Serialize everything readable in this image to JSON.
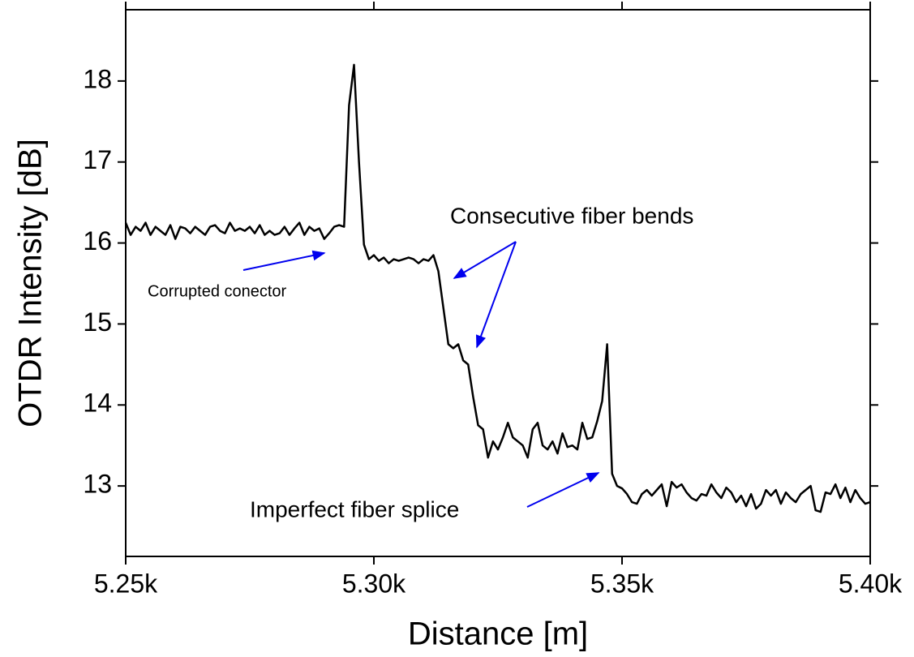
{
  "chart_data": {
    "type": "line",
    "x_label": "Distance [m]",
    "y_label": "OTDR Intensity [dB]",
    "xlim": [
      5250,
      5400
    ],
    "xticks": [
      {
        "value": 5250,
        "label": "5.25k"
      },
      {
        "value": 5300,
        "label": "5.30k"
      },
      {
        "value": 5350,
        "label": "5.35k"
      },
      {
        "value": 5400,
        "label": "5.40k"
      }
    ],
    "ylim": [
      12.13,
      18.88
    ],
    "yticks": [
      13,
      14,
      15,
      16,
      17,
      18
    ],
    "annotations": [
      "Corrupted conector",
      "Consecutive fiber bends",
      "Imperfect fiber splice"
    ],
    "x": [
      5250,
      5251,
      5252,
      5253,
      5254,
      5255,
      5256,
      5257,
      5258,
      5259,
      5260,
      5261,
      5262,
      5263,
      5264,
      5265,
      5266,
      5267,
      5268,
      5269,
      5270,
      5271,
      5272,
      5273,
      5274,
      5275,
      5276,
      5277,
      5278,
      5279,
      5280,
      5281,
      5282,
      5283,
      5284,
      5285,
      5286,
      5287,
      5288,
      5289,
      5290,
      5291,
      5292,
      5293,
      5294,
      5295,
      5296,
      5297,
      5298,
      5299,
      5300,
      5301,
      5302,
      5303,
      5304,
      5305,
      5306,
      5307,
      5308,
      5309,
      5310,
      5311,
      5312,
      5313,
      5314,
      5315,
      5316,
      5317,
      5318,
      5319,
      5320,
      5321,
      5322,
      5323,
      5324,
      5325,
      5326,
      5327,
      5328,
      5329,
      5330,
      5331,
      5332,
      5333,
      5334,
      5335,
      5336,
      5337,
      5338,
      5339,
      5340,
      5341,
      5342,
      5343,
      5344,
      5345,
      5346,
      5347,
      5348,
      5349,
      5350,
      5351,
      5352,
      5353,
      5354,
      5355,
      5356,
      5357,
      5358,
      5359,
      5360,
      5361,
      5362,
      5363,
      5364,
      5365,
      5366,
      5367,
      5368,
      5369,
      5370,
      5371,
      5372,
      5373,
      5374,
      5375,
      5376,
      5377,
      5378,
      5379,
      5380,
      5381,
      5382,
      5383,
      5384,
      5385,
      5386,
      5387,
      5388,
      5389,
      5390,
      5391,
      5392,
      5393,
      5394,
      5395,
      5396,
      5397,
      5398,
      5399,
      5400
    ],
    "series": [
      {
        "color": "#000000",
        "values": [
          16.25,
          16.1,
          16.2,
          16.15,
          16.25,
          16.1,
          16.2,
          16.15,
          16.1,
          16.22,
          16.05,
          16.2,
          16.18,
          16.12,
          16.2,
          16.15,
          16.1,
          16.2,
          16.22,
          16.15,
          16.12,
          16.25,
          16.15,
          16.18,
          16.15,
          16.2,
          16.12,
          16.22,
          16.1,
          16.15,
          16.1,
          16.12,
          16.2,
          16.1,
          16.18,
          16.25,
          16.1,
          16.2,
          16.15,
          16.18,
          16.05,
          16.12,
          16.2,
          16.22,
          16.2,
          17.7,
          18.2,
          17.0,
          15.98,
          15.8,
          15.85,
          15.78,
          15.82,
          15.75,
          15.8,
          15.78,
          15.8,
          15.82,
          15.8,
          15.75,
          15.8,
          15.78,
          15.85,
          15.65,
          15.2,
          14.75,
          14.7,
          14.75,
          14.55,
          14.5,
          14.1,
          13.75,
          13.7,
          13.35,
          13.55,
          13.45,
          13.6,
          13.78,
          13.6,
          13.55,
          13.5,
          13.35,
          13.7,
          13.78,
          13.5,
          13.45,
          13.55,
          13.4,
          13.65,
          13.48,
          13.5,
          13.45,
          13.78,
          13.58,
          13.6,
          13.8,
          14.05,
          14.75,
          13.15,
          13.0,
          12.97,
          12.9,
          12.8,
          12.78,
          12.9,
          12.95,
          12.88,
          12.95,
          13.02,
          12.75,
          13.05,
          12.98,
          13.02,
          12.92,
          12.85,
          12.82,
          12.9,
          12.88,
          13.02,
          12.92,
          12.85,
          12.98,
          12.92,
          12.8,
          12.88,
          12.75,
          12.9,
          12.72,
          12.78,
          12.95,
          12.88,
          12.95,
          12.78,
          12.92,
          12.85,
          12.8,
          12.9,
          12.95,
          13.0,
          12.7,
          12.68,
          12.92,
          12.9,
          13.02,
          12.85,
          12.98,
          12.8,
          12.95,
          12.85,
          12.78,
          12.8
        ]
      }
    ]
  }
}
